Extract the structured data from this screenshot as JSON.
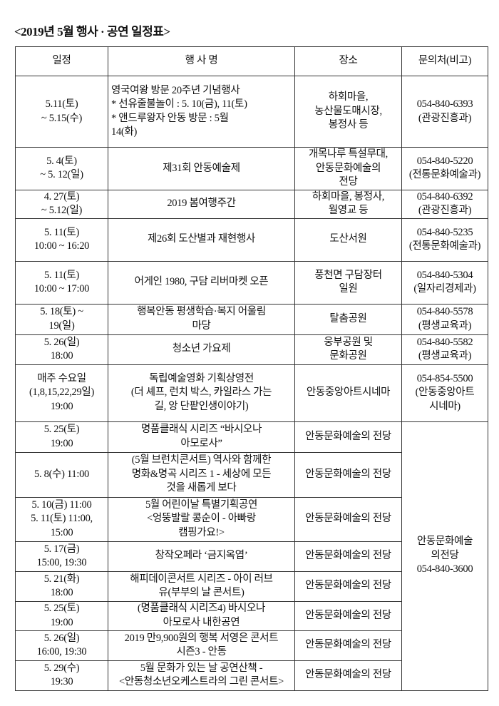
{
  "title": "<2019년 5월 행사 · 공연 일정표>",
  "headers": [
    "일정",
    "행 사 명",
    "장소",
    "문의처(비고)"
  ],
  "rows": [
    {
      "date": "5.11(토)\n~ 5.15(수)",
      "event": "   영국여왕 방문 20주년 기념행사\n*  선유줄불놀이 : 5. 10(금), 11(토)\n*  앤드루왕자 안동 방문 : 5월\n   14(화)",
      "place": "하회마을,\n농산물도매시장,\n봉정사 등",
      "contact": "054-840-6393\n(관광진흥과)"
    },
    {
      "date": "5. 4(토)\n~ 5. 12(일)",
      "event": "제31회 안동예술제",
      "place": "개목나루 특설무대,\n안동문화예술의\n전당",
      "contact": "054-840-5220\n(전통문화예술과)"
    },
    {
      "date": "4. 27(토)\n~ 5.12(일)",
      "event": "2019 봄여행주간",
      "place": "하회마을, 봉정사,\n월영교 등",
      "contact": "054-840-6392\n(관광진흥과)"
    },
    {
      "date": "5. 11(토)\n10:00 ~ 16:20",
      "event": "제26회 도산별과 재현행사",
      "place": "도산서원",
      "contact": "054-840-5235\n(전통문화예술과)"
    },
    {
      "date": "5. 11(토)\n10:00 ~ 17:00",
      "event": "어게인 1980, 구담 리버마켓 오픈",
      "place": "풍천면 구담장터\n일원",
      "contact": "054-840-5304\n(일자리경제과)"
    },
    {
      "date": "5. 18(토) ~\n19(일)",
      "event": "행복안동 평생학습·복지 어울림\n마당",
      "place": "탈춤공원",
      "contact": "054-840-5578\n(평생교육과)"
    },
    {
      "date": "5. 26(일)\n18:00",
      "event": "청소년 가요제",
      "place": "웅부공원 및\n문화공원",
      "contact": "054-840-5582\n(평생교육과)"
    },
    {
      "date": "매주 수요일\n(1,8,15,22,29일)\n19:00",
      "event": "독립예술영화 기획상영전\n(더 셰프, 런치 박스, 카일라스 가는\n길, 앙 단팥인생이야기)",
      "place": "안동중앙아트시네마",
      "contact": "054-854-5500\n(안동중앙아트\n시네마)"
    }
  ],
  "hall_rows": [
    {
      "date": "5. 25(토)\n19:00",
      "event": "명품클래식 시리즈 “바시오나\n아모로사”",
      "place": "안동문화예술의 전당"
    },
    {
      "date": "5. 8(수) 11:00",
      "event": "(5월 브런치콘서트) 역사와 함께한\n명화&명곡 시리즈 1 - 세상에 모든\n것을 새롭게 보다",
      "place": "안동문화예술의 전당"
    },
    {
      "date": "5. 10(금) 11:00\n5. 11(토) 11:00,\n15:00",
      "event": "5월 어린이날 특별기획공연\n<엉뚱발랄 콩순이 - 아빠랑\n캠핑가요!>",
      "place": "안동문화예술의 전당"
    },
    {
      "date": "5. 17(금)\n15:00, 19:30",
      "event": "창작오페라 ‘금지옥엽’",
      "place": "안동문화예술의 전당"
    },
    {
      "date": "5. 21(화)\n18:00",
      "event": "해피데이콘서트 시리즈 - 아이 러브\n유(부부의 날 콘서트)",
      "place": "안동문화예술의 전당"
    },
    {
      "date": "5. 25(토)\n19:00",
      "event": "(명품클래식 시리즈4) 바시오나\n아모로사 내한공연",
      "place": "안동문화예술의 전당"
    },
    {
      "date": "5. 26(일)\n16:00, 19:30",
      "event": "2019 만9,900원의 행복 서영은 콘서트\n시즌3 - 안동",
      "place": "안동문화예술의 전당"
    },
    {
      "date": "5. 29(수)\n19:30",
      "event": "5월 문화가 있는 날 공연산책 -\n<안동청소년오케스트라의 그린 콘서트>",
      "place": "안동문화예술의 전당"
    }
  ],
  "hall_contact": "안동문화예술\n의전당\n054-840-3600"
}
